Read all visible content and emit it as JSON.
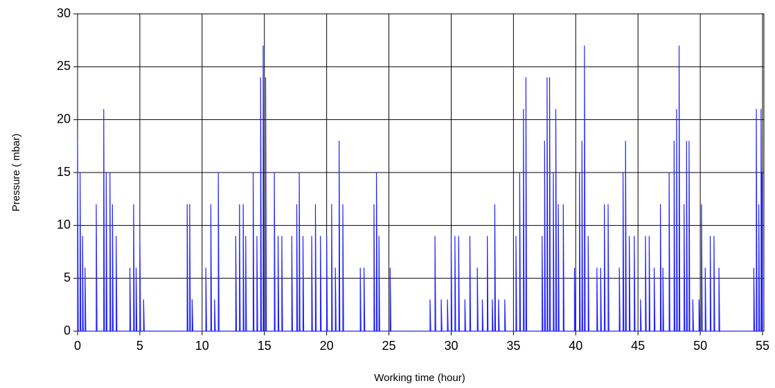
{
  "chart_data": {
    "type": "line",
    "x_label": "Working time (hour)",
    "y_label": "Pressure ( mbar)",
    "xlim": [
      0,
      55
    ],
    "ylim": [
      0,
      30
    ],
    "xticks": [
      0,
      5,
      10,
      15,
      20,
      25,
      30,
      35,
      40,
      45,
      50,
      55
    ],
    "yticks": [
      0,
      5,
      10,
      15,
      20,
      25,
      30
    ],
    "grid": true,
    "series": [
      {
        "color": "#2020ff",
        "x": [
          0,
          0,
          0.06,
          0.2,
          0.2,
          0.26,
          0.4,
          0.4,
          0.46,
          0.6,
          0.6,
          0.66,
          1.5,
          1.5,
          1.56,
          2.1,
          2.1,
          2.16,
          2.3,
          2.3,
          2.36,
          2.6,
          2.6,
          2.66,
          2.8,
          2.8,
          2.86,
          3.1,
          3.1,
          3.16,
          4.2,
          4.2,
          4.26,
          4.5,
          4.5,
          4.56,
          4.7,
          4.7,
          4.76,
          5.0,
          5.0,
          5.06,
          5.3,
          5.3,
          5.36,
          8.8,
          8.8,
          8.86,
          9.0,
          9.0,
          9.06,
          9.2,
          9.2,
          9.26,
          10.3,
          10.3,
          10.36,
          10.7,
          10.7,
          10.76,
          11.0,
          11.0,
          11.06,
          11.3,
          11.3,
          11.36,
          12.7,
          12.7,
          12.76,
          13.0,
          13.0,
          13.06,
          13.3,
          13.3,
          13.36,
          13.5,
          13.5,
          13.56,
          14.1,
          14.1,
          14.16,
          14.4,
          14.4,
          14.46,
          14.7,
          14.7,
          14.76,
          14.9,
          14.9,
          14.96,
          15.1,
          15.1,
          15.16,
          15.8,
          15.8,
          15.86,
          16.1,
          16.1,
          16.16,
          16.4,
          16.4,
          16.46,
          17.2,
          17.2,
          17.26,
          17.6,
          17.6,
          17.66,
          17.8,
          17.8,
          17.86,
          18.1,
          18.1,
          18.16,
          18.8,
          18.8,
          18.86,
          19.1,
          19.1,
          19.16,
          19.5,
          19.5,
          19.56,
          20.0,
          20.0,
          20.06,
          20.4,
          20.4,
          20.46,
          20.7,
          20.7,
          20.76,
          21.0,
          21.0,
          21.06,
          21.3,
          21.3,
          21.36,
          22.7,
          22.7,
          22.76,
          23.0,
          23.0,
          23.06,
          23.8,
          23.8,
          23.86,
          24.0,
          24.0,
          24.06,
          24.2,
          24.2,
          24.26,
          25.1,
          25.1,
          25.16,
          28.3,
          28.3,
          28.36,
          28.7,
          28.7,
          28.76,
          29.2,
          29.2,
          29.26,
          29.7,
          29.7,
          29.76,
          30.0,
          30.0,
          30.06,
          30.3,
          30.3,
          30.36,
          30.6,
          30.6,
          30.66,
          31.1,
          31.1,
          31.16,
          31.5,
          31.5,
          31.56,
          32.1,
          32.1,
          32.16,
          32.5,
          32.5,
          32.56,
          32.9,
          32.9,
          32.96,
          33.3,
          33.3,
          33.36,
          33.5,
          33.5,
          33.56,
          33.8,
          33.8,
          33.86,
          34.3,
          34.3,
          34.36,
          35.2,
          35.2,
          35.26,
          35.5,
          35.5,
          35.56,
          35.8,
          35.8,
          35.86,
          36.0,
          36.0,
          36.06,
          37.3,
          37.3,
          37.36,
          37.5,
          37.5,
          37.56,
          37.7,
          37.7,
          37.76,
          37.9,
          37.9,
          37.96,
          38.2,
          38.2,
          38.26,
          38.4,
          38.4,
          38.46,
          38.6,
          38.6,
          38.66,
          39.0,
          39.0,
          39.06,
          39.9,
          39.9,
          39.96,
          40.3,
          40.3,
          40.36,
          40.5,
          40.5,
          40.56,
          40.7,
          40.7,
          40.76,
          41.0,
          41.0,
          41.06,
          41.7,
          41.7,
          41.76,
          42.0,
          42.0,
          42.06,
          42.3,
          42.3,
          42.36,
          42.6,
          42.6,
          42.66,
          43.5,
          43.5,
          43.56,
          43.8,
          43.8,
          43.86,
          44.0,
          44.0,
          44.06,
          44.3,
          44.3,
          44.36,
          44.7,
          44.7,
          44.76,
          45.2,
          45.2,
          45.26,
          45.6,
          45.6,
          45.66,
          45.9,
          45.9,
          45.96,
          46.3,
          46.3,
          46.36,
          46.8,
          46.8,
          46.86,
          47.0,
          47.0,
          47.06,
          47.5,
          47.5,
          47.56,
          47.9,
          47.9,
          47.96,
          48.1,
          48.1,
          48.16,
          48.3,
          48.3,
          48.36,
          48.7,
          48.7,
          48.76,
          48.9,
          48.9,
          48.96,
          49.1,
          49.1,
          49.16,
          49.4,
          49.4,
          49.46,
          49.9,
          49.9,
          49.96,
          50.1,
          50.1,
          50.16,
          50.4,
          50.4,
          50.46,
          50.8,
          50.8,
          50.86,
          51.1,
          51.1,
          51.16,
          51.5,
          51.5,
          51.56,
          54.3,
          54.3,
          54.36,
          54.5,
          54.5,
          54.56,
          54.7,
          54.7,
          54.76,
          54.88,
          54.88,
          54.94,
          54.96,
          54.96,
          55
        ],
        "values": [
          0,
          18,
          0,
          0,
          15,
          0,
          0,
          9,
          0,
          0,
          6,
          0,
          0,
          12,
          0,
          0,
          21,
          0,
          0,
          15,
          0,
          0,
          15,
          0,
          0,
          12,
          0,
          0,
          9,
          0,
          0,
          6,
          0,
          0,
          12,
          0,
          0,
          6,
          0,
          0,
          9,
          0,
          0,
          3,
          0,
          0,
          12,
          0,
          0,
          12,
          0,
          0,
          3,
          0,
          0,
          6,
          0,
          0,
          12,
          0,
          0,
          3,
          0,
          0,
          15,
          0,
          0,
          9,
          0,
          0,
          12,
          0,
          0,
          12,
          0,
          0,
          9,
          0,
          0,
          15,
          0,
          0,
          9,
          0,
          0,
          24,
          0,
          0,
          27,
          0,
          0,
          24,
          0,
          0,
          15,
          0,
          0,
          9,
          0,
          0,
          9,
          0,
          0,
          9,
          0,
          0,
          12,
          0,
          0,
          15,
          0,
          0,
          9,
          0,
          0,
          9,
          0,
          0,
          12,
          0,
          0,
          9,
          0,
          0,
          9,
          0,
          0,
          12,
          0,
          0,
          6,
          0,
          0,
          18,
          0,
          0,
          12,
          0,
          0,
          6,
          0,
          0,
          6,
          0,
          0,
          12,
          0,
          0,
          15,
          0,
          0,
          9,
          0,
          0,
          6,
          0,
          0,
          3,
          0,
          0,
          9,
          0,
          0,
          3,
          0,
          0,
          3,
          0,
          0,
          9,
          0,
          0,
          9,
          0,
          0,
          9,
          0,
          0,
          3,
          0,
          0,
          9,
          0,
          0,
          6,
          0,
          0,
          3,
          0,
          0,
          9,
          0,
          0,
          3,
          0,
          0,
          12,
          0,
          0,
          3,
          0,
          0,
          3,
          0,
          0,
          9,
          0,
          0,
          15,
          0,
          0,
          21,
          0,
          0,
          24,
          0,
          0,
          9,
          0,
          0,
          18,
          0,
          0,
          24,
          0,
          0,
          24,
          0,
          0,
          15,
          0,
          0,
          21,
          0,
          0,
          12,
          0,
          0,
          12,
          0,
          0,
          6,
          0,
          0,
          15,
          0,
          0,
          18,
          0,
          0,
          27,
          0,
          0,
          9,
          0,
          0,
          6,
          0,
          0,
          6,
          0,
          0,
          12,
          0,
          0,
          12,
          0,
          0,
          6,
          0,
          0,
          15,
          0,
          0,
          18,
          0,
          0,
          9,
          0,
          0,
          9,
          0,
          0,
          3,
          0,
          0,
          9,
          0,
          0,
          9,
          0,
          0,
          6,
          0,
          0,
          12,
          0,
          0,
          6,
          0,
          0,
          15,
          0,
          0,
          18,
          0,
          0,
          21,
          0,
          0,
          27,
          0,
          0,
          12,
          0,
          0,
          18,
          0,
          0,
          18,
          0,
          0,
          3,
          0,
          0,
          3,
          0,
          0,
          12,
          0,
          0,
          6,
          0,
          0,
          9,
          0,
          0,
          9,
          0,
          0,
          6,
          0,
          0,
          6,
          0,
          0,
          21,
          0,
          0,
          12,
          0,
          0,
          21,
          0,
          0,
          15,
          0
        ]
      }
    ]
  }
}
